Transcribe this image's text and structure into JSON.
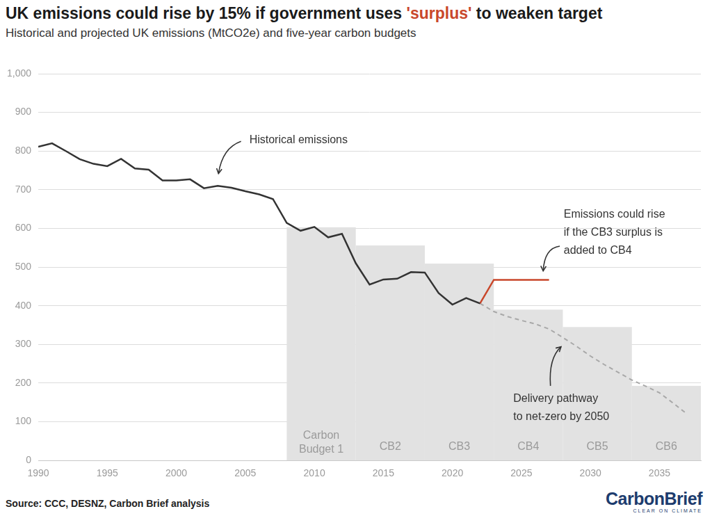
{
  "chart_data": {
    "type": "line",
    "title": "UK emissions could rise by 15% if government uses 'surplus' to weaken target",
    "subtitle": "Historical and projected UK emissions (MtCO2e) and five-year carbon budgets",
    "source": "Source: CCC, DESNZ, Carbon Brief analysis",
    "logo": "CarbonBrief",
    "logo_tagline": "CLEAR ON CLIMATE",
    "xlim": [
      1990,
      2038
    ],
    "xticks": [
      1990,
      1995,
      2000,
      2005,
      2010,
      2015,
      2020,
      2025,
      2030,
      2035
    ],
    "ylim": [
      0,
      1000
    ],
    "yticks": [
      0,
      100,
      200,
      300,
      400,
      500,
      600,
      700,
      800,
      900,
      {
        "value": 1000,
        "label": "1,000"
      }
    ],
    "grid": true,
    "budgets": [
      {
        "label": "Carbon Budget 1",
        "start": 2008,
        "end": 2013,
        "value": 603
      },
      {
        "label": "CB2",
        "start": 2013,
        "end": 2018,
        "value": 556
      },
      {
        "label": "CB3",
        "start": 2018,
        "end": 2023,
        "value": 509
      },
      {
        "label": "CB4",
        "start": 2023,
        "end": 2028,
        "value": 390
      },
      {
        "label": "CB5",
        "start": 2028,
        "end": 2033,
        "value": 345
      },
      {
        "label": "CB6",
        "start": 2033,
        "end": 2038,
        "value": 193
      }
    ],
    "series": [
      {
        "name": "Historical emissions",
        "color": "#333333",
        "line_style": "solid",
        "x": [
          1990,
          1991,
          1992,
          1993,
          1994,
          1995,
          1996,
          1997,
          1998,
          1999,
          2000,
          2001,
          2002,
          2003,
          2004,
          2005,
          2006,
          2007,
          2008,
          2009,
          2010,
          2011,
          2012,
          2013,
          2014,
          2015,
          2016,
          2017,
          2018,
          2019,
          2020,
          2021,
          2022
        ],
        "values": [
          811,
          820,
          800,
          779,
          767,
          761,
          780,
          755,
          752,
          724,
          724,
          727,
          704,
          710,
          705,
          696,
          688,
          676,
          614,
          594,
          604,
          577,
          586,
          510,
          455,
          468,
          470,
          487,
          486,
          433,
          403,
          420,
          406
        ]
      },
      {
        "name": "Emissions could rise\nif the CB3 surplus is\nadded to CB4",
        "color": "#c9472b",
        "line_style": "solid",
        "x": [
          2022,
          2023,
          2024,
          2025,
          2026,
          2027
        ],
        "values": [
          406,
          467,
          467,
          467,
          467,
          467
        ]
      },
      {
        "name": "Delivery pathway\nto net-zero by 2050",
        "color": "#a8a8a8",
        "line_style": "dashed",
        "x": [
          2022,
          2023,
          2024,
          2025,
          2026,
          2027,
          2028,
          2029,
          2030,
          2031,
          2032,
          2033,
          2034,
          2035,
          2036,
          2037
        ],
        "values": [
          406,
          385,
          372,
          362,
          353,
          340,
          318,
          295,
          270,
          248,
          228,
          208,
          192,
          175,
          148,
          120
        ]
      }
    ]
  }
}
